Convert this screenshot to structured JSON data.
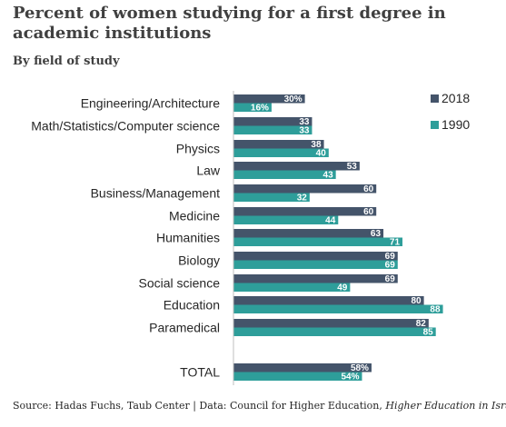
{
  "title": "Percent of women studying for a first degree in academic institutions",
  "subtitle": "By field of study",
  "source": {
    "prefix": "Source: Hadas Fuchs, Taub Center | Data: Council for Higher Education, ",
    "italic": "Higher Education in Israel"
  },
  "colors": {
    "2018": "#44546a",
    "1990": "#2e9e9a"
  },
  "chart_data": {
    "type": "bar",
    "orientation": "horizontal",
    "categories": [
      "Engineering/Architecture",
      "Math/Statistics/Computer science",
      "Physics",
      "Law",
      "Business/Management",
      "Medicine",
      "Humanities",
      "Biology",
      "Social science",
      "Education",
      "Paramedical",
      "TOTAL"
    ],
    "series": [
      {
        "name": "2018",
        "values": [
          30,
          33,
          38,
          53,
          60,
          60,
          63,
          69,
          69,
          80,
          82,
          58
        ],
        "labels": [
          "30%",
          "33",
          "38",
          "53",
          "60",
          "60",
          "63",
          "69",
          "69",
          "80",
          "82",
          "58%"
        ]
      },
      {
        "name": "1990",
        "values": [
          16,
          33,
          40,
          43,
          32,
          44,
          71,
          69,
          49,
          88,
          85,
          54
        ],
        "labels": [
          "16%",
          "33",
          "40",
          "43",
          "32",
          "44",
          "71",
          "69",
          "49",
          "88",
          "85",
          "54%"
        ]
      }
    ],
    "xlim": [
      0,
      100
    ],
    "grid": false,
    "legend_position": "top-right"
  }
}
